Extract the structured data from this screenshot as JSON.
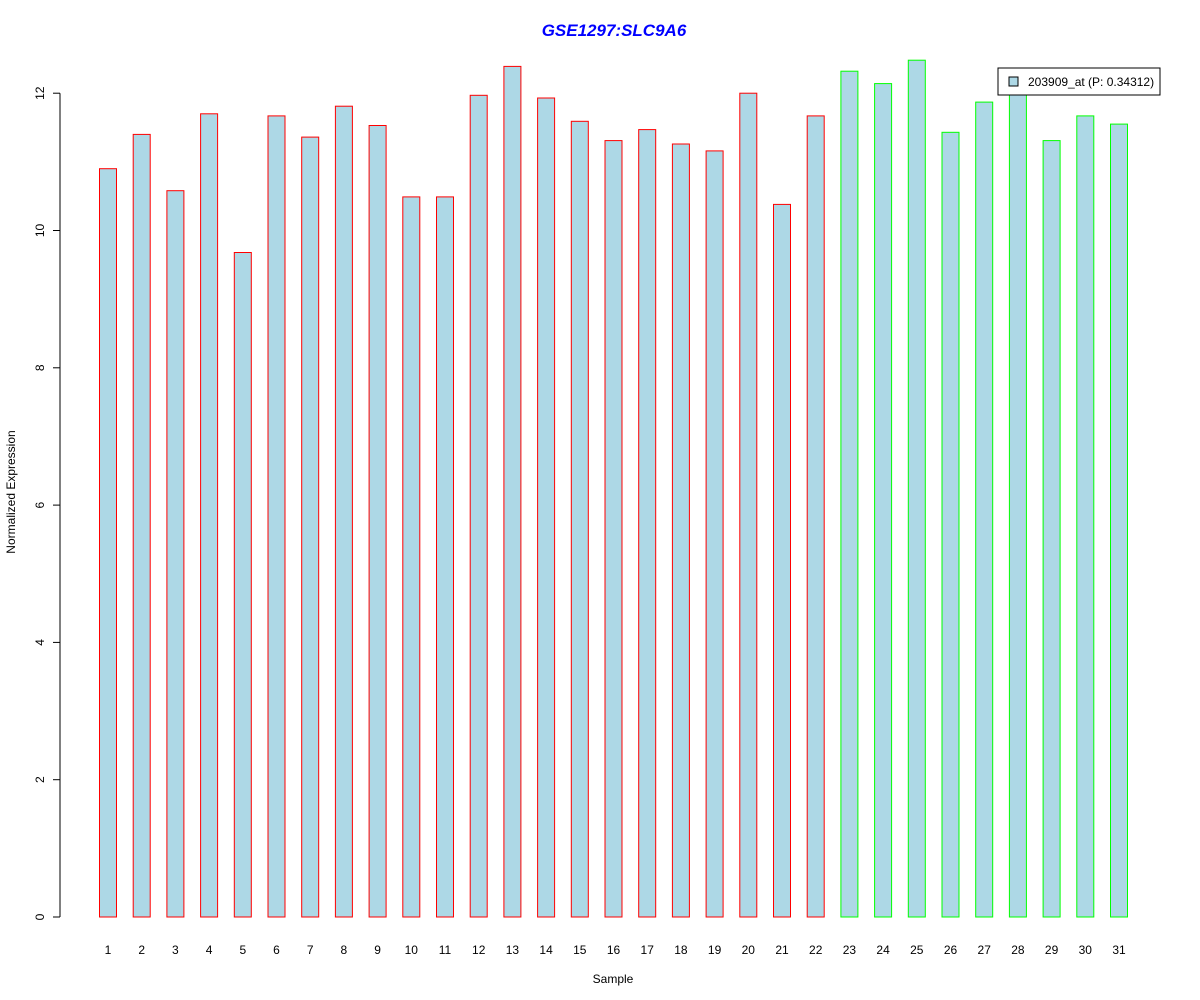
{
  "chart_data": {
    "type": "bar",
    "title": "GSE1297:SLC9A6",
    "xlabel": "Sample",
    "ylabel": "Normalized Expression",
    "ylim": [
      0,
      12.5
    ],
    "yticks": [
      0,
      2,
      4,
      6,
      8,
      10,
      12
    ],
    "categories": [
      "1",
      "2",
      "3",
      "4",
      "5",
      "6",
      "7",
      "8",
      "9",
      "10",
      "11",
      "12",
      "13",
      "14",
      "15",
      "16",
      "17",
      "18",
      "19",
      "20",
      "21",
      "22",
      "23",
      "24",
      "25",
      "26",
      "27",
      "28",
      "29",
      "30",
      "31"
    ],
    "values": [
      10.9,
      11.4,
      10.58,
      11.7,
      9.68,
      11.67,
      11.36,
      11.81,
      11.53,
      10.49,
      10.49,
      11.97,
      12.39,
      11.93,
      11.59,
      11.31,
      11.47,
      11.26,
      11.16,
      12.0,
      10.38,
      11.67,
      12.32,
      12.14,
      12.48,
      11.43,
      11.87,
      11.98,
      11.31,
      11.67,
      11.55
    ],
    "groups": [
      "red",
      "red",
      "red",
      "red",
      "red",
      "red",
      "red",
      "red",
      "red",
      "red",
      "red",
      "red",
      "red",
      "red",
      "red",
      "red",
      "red",
      "red",
      "red",
      "red",
      "red",
      "red",
      "green",
      "green",
      "green",
      "green",
      "green",
      "green",
      "green",
      "green",
      "green"
    ],
    "legend": {
      "label": "203909_at (P: 0.34312)",
      "position": "top-right"
    },
    "grid": false,
    "colors": {
      "fill": "#add8e6",
      "red": "#ff0000",
      "green": "#00ff00",
      "title": "#0000ff"
    }
  }
}
